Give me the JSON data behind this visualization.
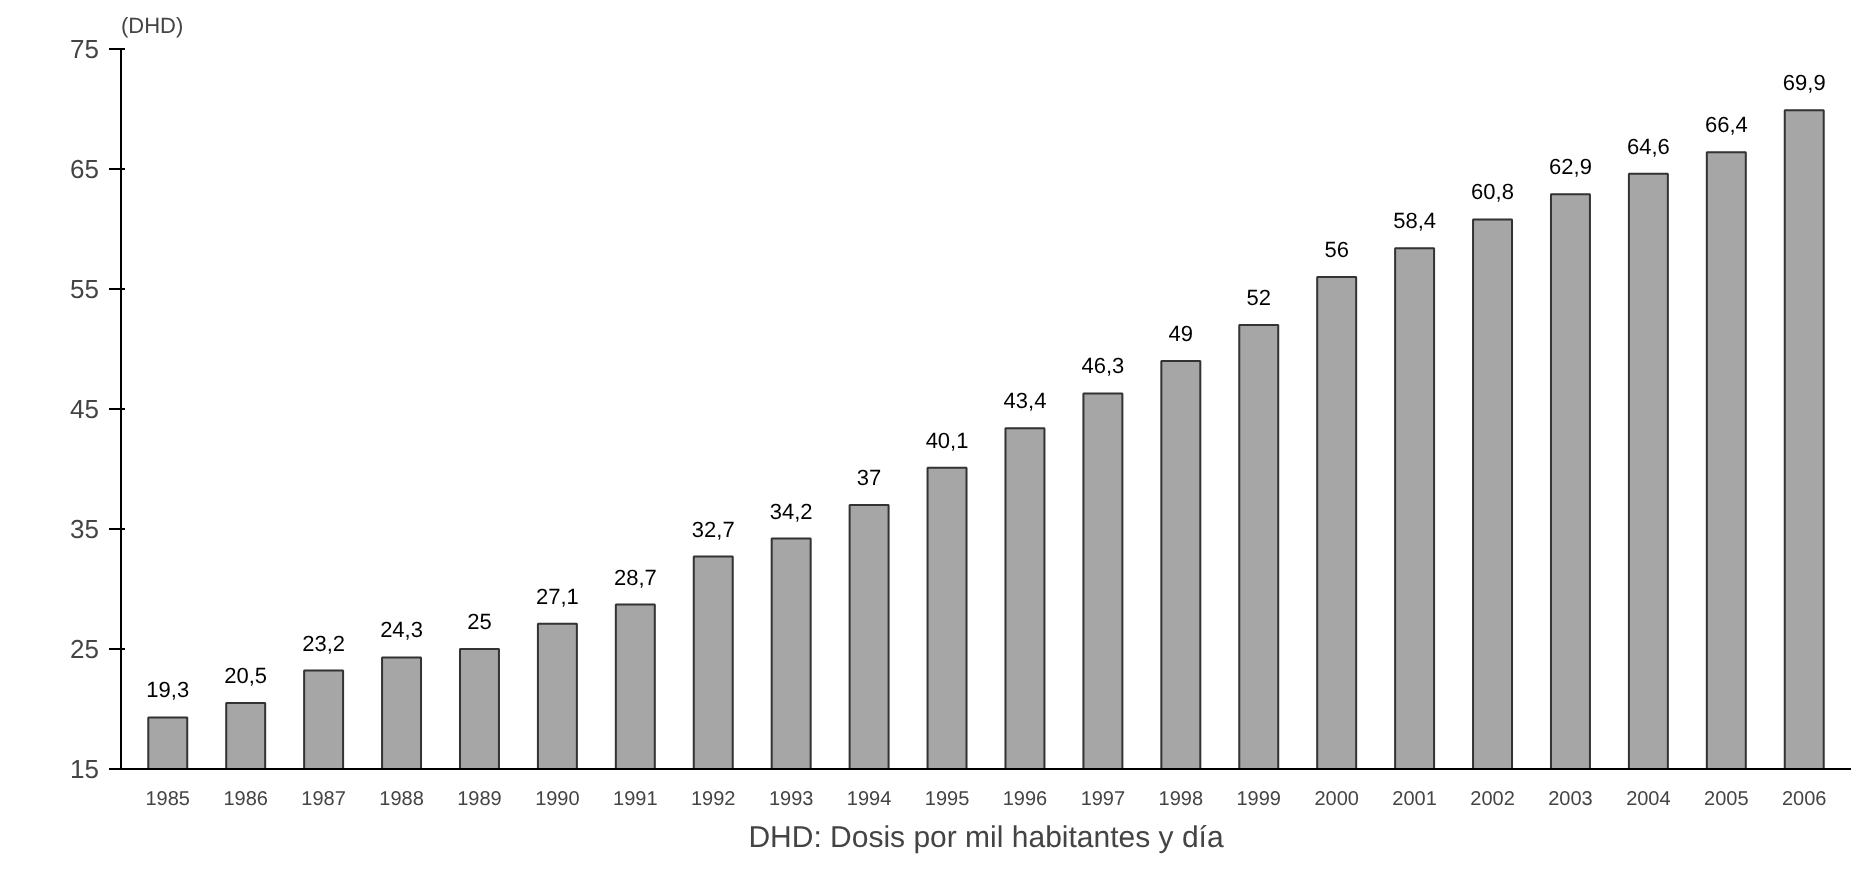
{
  "chart_data": {
    "type": "bar",
    "ylabel": "(DHD)",
    "xlabel": "DHD: Dosis por mil habitantes y día",
    "categories": [
      "1985",
      "1986",
      "1987",
      "1988",
      "1989",
      "1990",
      "1991",
      "1992",
      "1993",
      "1994",
      "1995",
      "1996",
      "1997",
      "1998",
      "1999",
      "2000",
      "2001",
      "2002",
      "2003",
      "2004",
      "2005",
      "2006"
    ],
    "values": [
      19.3,
      20.5,
      23.2,
      24.3,
      25,
      27.1,
      28.7,
      32.7,
      34.2,
      37,
      40.1,
      43.4,
      46.3,
      49,
      52,
      56,
      58.4,
      60.8,
      62.9,
      64.6,
      66.4,
      69.9
    ],
    "value_labels": [
      "19,3",
      "20,5",
      "23,2",
      "24,3",
      "25",
      "27,1",
      "28,7",
      "32,7",
      "34,2",
      "37",
      "40,1",
      "43,4",
      "46,3",
      "49",
      "52",
      "56",
      "58,4",
      "60,8",
      "62,9",
      "64,6",
      "66,4",
      "69,9"
    ],
    "color": "#a6a6a6",
    "ylim": [
      15,
      75
    ],
    "yticks": [
      15,
      25,
      35,
      45,
      55,
      65,
      75
    ]
  }
}
